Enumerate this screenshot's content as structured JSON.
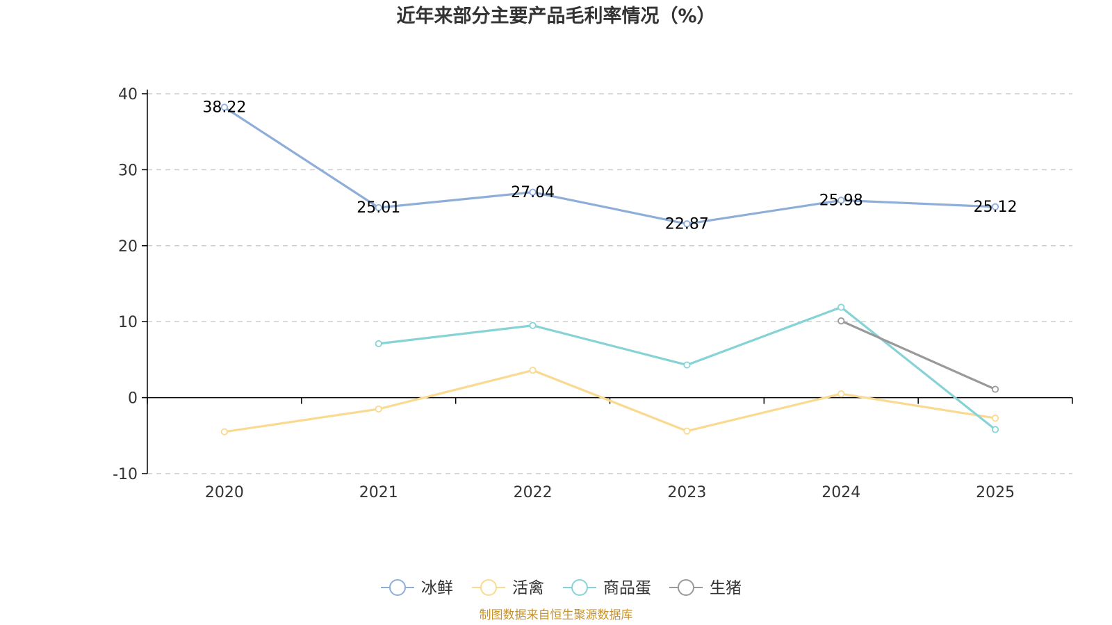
{
  "chart_data": {
    "type": "line",
    "title": "近年来部分主要产品毛利率情况（%）",
    "categories": [
      "2020",
      "2021",
      "2022",
      "2023",
      "2024",
      "2025"
    ],
    "ylim": [
      -10,
      40
    ],
    "yticks": [
      -10,
      0,
      10,
      20,
      30,
      40
    ],
    "grid": true,
    "legend_position": "bottom",
    "series": [
      {
        "name": "冰鲜",
        "color": "#8eaed9",
        "values": [
          38.22,
          25.01,
          27.04,
          22.87,
          25.98,
          25.12
        ],
        "show_labels": true
      },
      {
        "name": "活禽",
        "color": "#fad990",
        "values": [
          -4.5,
          -1.5,
          3.6,
          -4.4,
          0.5,
          -2.7
        ],
        "show_labels": false
      },
      {
        "name": "商品蛋",
        "color": "#86d3d6",
        "values": [
          null,
          7.1,
          9.5,
          4.3,
          11.9,
          -4.2
        ],
        "show_labels": false
      },
      {
        "name": "生猪",
        "color": "#999999",
        "values": [
          null,
          null,
          null,
          null,
          10.1,
          1.1
        ],
        "show_labels": false
      }
    ]
  },
  "source_note": "制图数据来自恒生聚源数据库"
}
